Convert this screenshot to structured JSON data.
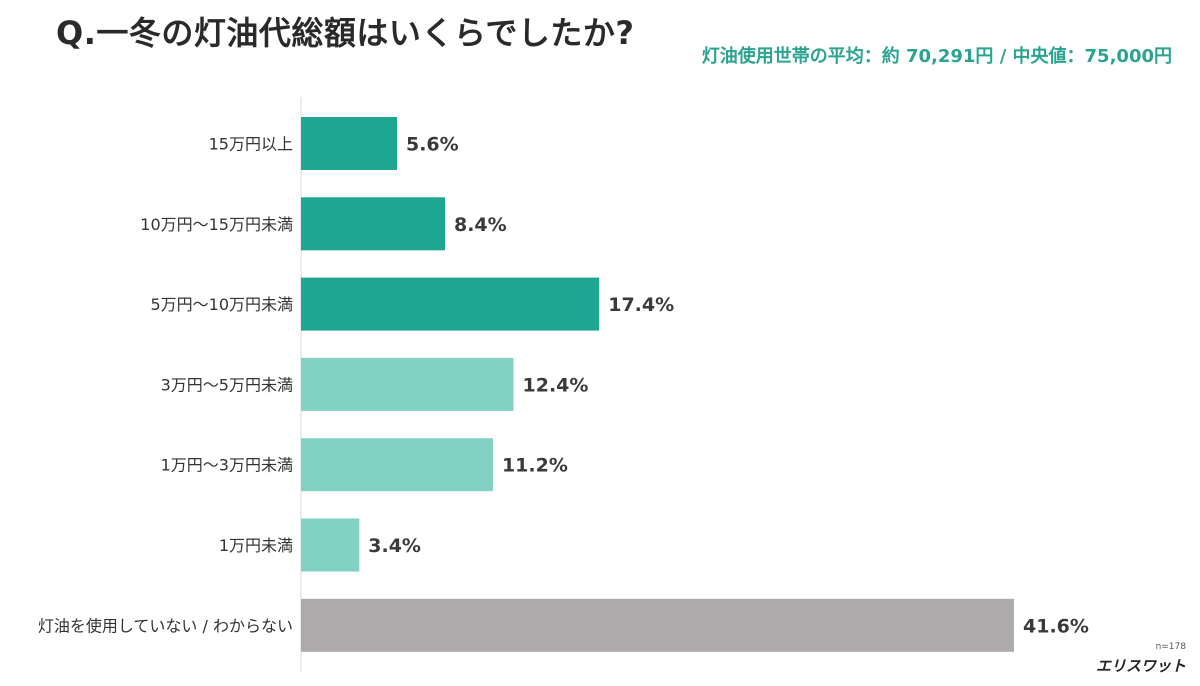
{
  "header": {
    "title": "Q.一冬の灯油代総額はいくらでしたか?",
    "subtitle": "灯油使用世帯の平均：約 70,291円 / 中央値：75,000円"
  },
  "footer": {
    "sample_size": "n=178",
    "brand": "エリスワット"
  },
  "colors": {
    "dark_teal": "#1fa693",
    "light_teal": "#82d2c4",
    "gray": "#aea9aa",
    "label_text": "#333333",
    "value_text": "#3a3a3a"
  },
  "chart_data": {
    "type": "bar",
    "orientation": "horizontal",
    "categories": [
      "15万円以上",
      "10万円〜15万円未満",
      "5万円〜10万円未満",
      "3万円〜5万円未満",
      "1万円〜3万円未満",
      "1万円未満",
      "灯油を使用していない / わからない"
    ],
    "values": [
      5.6,
      8.4,
      17.4,
      12.4,
      11.2,
      3.4,
      41.6
    ],
    "value_labels": [
      "5.6%",
      "8.4%",
      "17.4%",
      "12.4%",
      "11.2%",
      "3.4%",
      "41.6%"
    ],
    "bar_colors": [
      "dark_teal",
      "dark_teal",
      "dark_teal",
      "light_teal",
      "light_teal",
      "light_teal",
      "gray"
    ],
    "unit": "%",
    "xlim": [
      0,
      41.6
    ],
    "grid": false,
    "legend": "none"
  }
}
